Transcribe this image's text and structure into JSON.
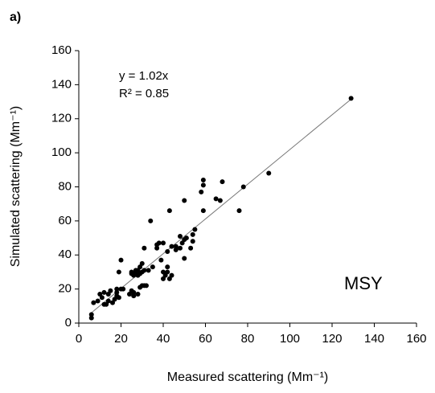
{
  "chart_data": {
    "type": "scatter",
    "panel_label": "a)",
    "x_label": "Measured scattering (Mm⁻¹)",
    "y_label": "Simulated scattering (Mm⁻¹)",
    "annotations": [
      "y = 1.02x",
      "R² = 0.85",
      "MSY"
    ],
    "xlim": [
      0,
      160
    ],
    "ylim": [
      0,
      160
    ],
    "xticks": [
      0,
      20,
      40,
      60,
      80,
      100,
      120,
      140,
      160
    ],
    "yticks": [
      0,
      20,
      40,
      60,
      80,
      100,
      120,
      140,
      160
    ],
    "color": "#000000",
    "trendline": {
      "x": [
        6,
        129.5
      ],
      "y": [
        6.1,
        132
      ]
    },
    "x": [
      6,
      6,
      7,
      9,
      10,
      11,
      12,
      12,
      13,
      14,
      14,
      15,
      16,
      17,
      18,
      18,
      18,
      19,
      19,
      20,
      20,
      21,
      24,
      25,
      25,
      25,
      26,
      26,
      26,
      27,
      27,
      28,
      28,
      28,
      29,
      29,
      29,
      30,
      30,
      30,
      31,
      31,
      31,
      32,
      33,
      34,
      35,
      37,
      37,
      38,
      39,
      40,
      40,
      40,
      41,
      42,
      42,
      42,
      43,
      43,
      44,
      44,
      46,
      46,
      48,
      48,
      49,
      50,
      50,
      50,
      51,
      53,
      54,
      54,
      55,
      58,
      59,
      59,
      59,
      65,
      67,
      68,
      76,
      78,
      90,
      129
    ],
    "y": [
      3,
      5,
      12,
      13,
      17,
      15,
      11,
      18,
      11,
      13,
      17,
      19,
      12,
      14,
      16,
      18,
      20,
      15,
      30,
      20,
      37,
      20,
      17,
      19,
      29,
      30,
      16,
      18,
      28,
      30,
      31,
      17,
      28,
      31,
      21,
      29,
      33,
      22,
      30,
      35,
      22,
      31,
      44,
      22,
      31,
      60,
      33,
      44,
      46,
      47,
      37,
      47,
      26,
      30,
      28,
      30,
      33,
      42,
      26,
      66,
      28,
      45,
      43,
      45,
      44,
      51,
      47,
      38,
      72,
      49,
      50,
      44,
      48,
      52,
      55,
      77,
      66,
      81,
      84,
      73,
      72,
      83,
      66,
      80,
      88,
      132
    ]
  }
}
